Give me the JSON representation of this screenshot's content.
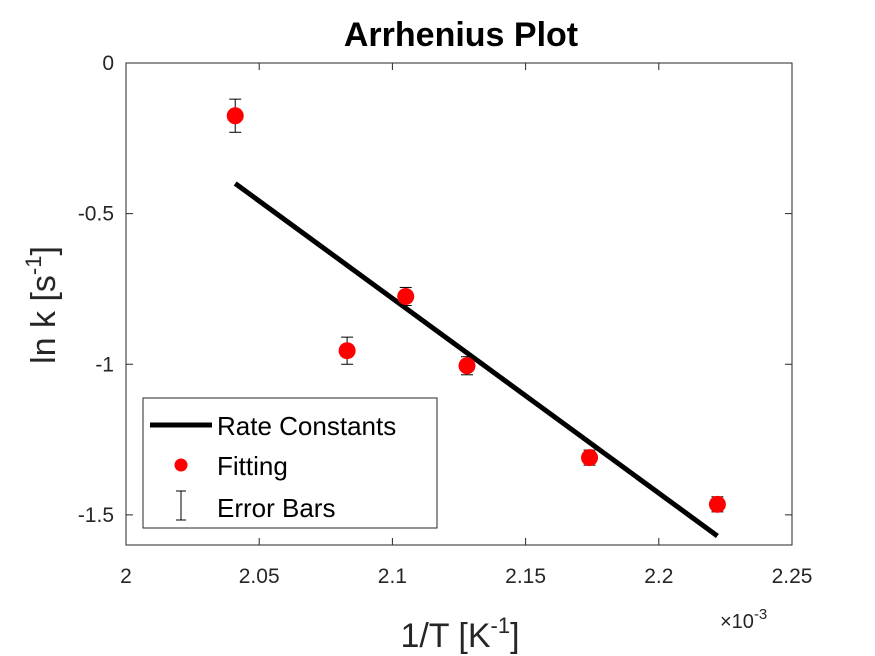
{
  "chart_data": {
    "type": "scatter",
    "title": "Arrhenius Plot",
    "xlabel": "1/T [K",
    "xlabel_sup": "-1",
    "xlabel_suffix": "]",
    "ylabel": "ln k [s",
    "ylabel_sup": "-1",
    "ylabel_suffix": "]",
    "x_exponent_label": "×10",
    "x_exponent_sup": "-3",
    "xlim": [
      2.0,
      2.25
    ],
    "ylim": [
      -1.6,
      0
    ],
    "x_ticks": [
      2.0,
      2.05,
      2.1,
      2.15,
      2.2,
      2.25
    ],
    "x_tick_labels": [
      "2",
      "2.05",
      "2.1",
      "2.15",
      "2.2",
      "2.25"
    ],
    "y_ticks": [
      0,
      -0.5,
      -1,
      -1.5
    ],
    "y_tick_labels": [
      "0",
      "-0.5",
      "-1",
      "-1.5"
    ],
    "grid": false,
    "legend_position": "bottom-left",
    "series": [
      {
        "name": "Rate Constants",
        "kind": "line",
        "color": "#000000",
        "x": [
          2.041,
          2.222
        ],
        "y": [
          -0.4,
          -1.57
        ]
      },
      {
        "name": "Fitting",
        "kind": "scatter",
        "color": "#ff0000",
        "x": [
          2.041,
          2.083,
          2.105,
          2.128,
          2.174,
          2.222
        ],
        "y": [
          -0.175,
          -0.955,
          -0.775,
          -1.005,
          -1.31,
          -1.465
        ]
      },
      {
        "name": "Error Bars",
        "kind": "errorbar",
        "color": "#000000",
        "x": [
          2.041,
          2.083,
          2.105,
          2.128,
          2.174,
          2.222
        ],
        "y": [
          -0.175,
          -0.955,
          -0.775,
          -1.005,
          -1.31,
          -1.465
        ],
        "err": [
          0.055,
          0.045,
          0.03,
          0.03,
          0.025,
          0.025
        ]
      }
    ]
  }
}
